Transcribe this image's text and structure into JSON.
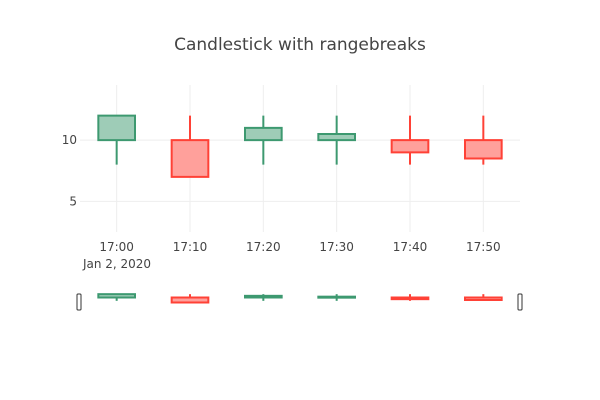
{
  "chart_data": {
    "type": "candlestick",
    "title": "Candlestick with rangebreaks",
    "x": [
      "17:00",
      "17:10",
      "17:20",
      "17:30",
      "17:40",
      "17:50"
    ],
    "x_tick_labels": [
      "17:00",
      "17:10",
      "17:20",
      "17:30",
      "17:40",
      "17:50"
    ],
    "x_date_label": "Jan 2, 2020",
    "open": [
      10,
      10,
      10,
      10,
      10,
      10
    ],
    "high": [
      12,
      12,
      12,
      12,
      12,
      12
    ],
    "low": [
      8,
      7,
      8,
      8,
      8,
      8
    ],
    "close": [
      12,
      7,
      11,
      10.5,
      9,
      8.5
    ],
    "y_ticks": [
      5,
      10
    ],
    "y_tick_labels": [
      "5",
      "10"
    ],
    "ylim": [
      2.5,
      14.5
    ],
    "increasing_color": "#3D9970",
    "increasing_fill": "#9ECCB7",
    "decreasing_color": "#FF4136",
    "decreasing_fill": "#FFA09B",
    "grid": true,
    "rangeslider": true
  }
}
